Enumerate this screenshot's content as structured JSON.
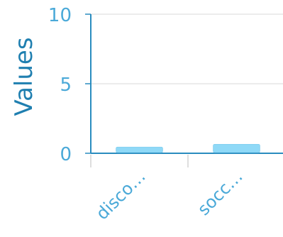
{
  "chart_data": {
    "type": "bar",
    "categories": [
      "disco…",
      "socc…"
    ],
    "values": [
      0.4,
      0.6
    ],
    "title": "",
    "xlabel": "",
    "ylabel": "Values",
    "ylim": [
      0,
      10
    ],
    "yticks": [
      0,
      5,
      10
    ],
    "grid": true,
    "legend": "none",
    "colors": {
      "bar": "#8fd9f7",
      "bar_edge": "#74c6ea",
      "axis": "#2a8cbf",
      "tick_text": "#4aa9d8",
      "label_text": "#1f7fb0",
      "grid": "#d9d9d9"
    }
  }
}
